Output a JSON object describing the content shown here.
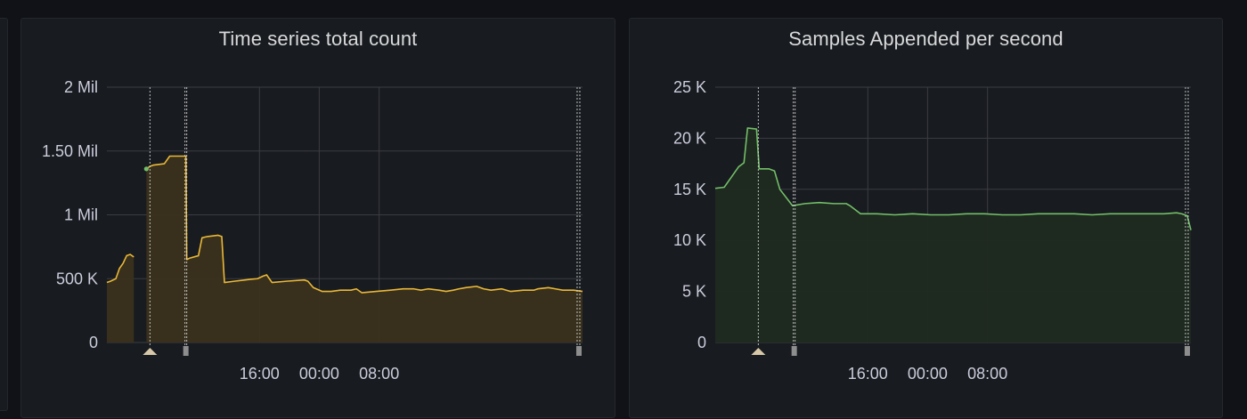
{
  "chart_data": [
    {
      "type": "area",
      "title": "Time series total count",
      "color": "#eab839",
      "fill": "#3a321c",
      "ylim": [
        0,
        2000000
      ],
      "yticks": [
        {
          "v": 0,
          "label": "0"
        },
        {
          "v": 500000,
          "label": "500 K"
        },
        {
          "v": 1000000,
          "label": "1 Mil"
        },
        {
          "v": 1500000,
          "label": "1.50 Mil"
        },
        {
          "v": 2000000,
          "label": "2 Mil"
        }
      ],
      "xlim": [
        8.2,
        10.85
      ],
      "xticks": [
        {
          "v": 9.05,
          "label": "16:00"
        },
        {
          "v": 9.383,
          "label": "00:00"
        },
        {
          "v": 9.717,
          "label": "08:00"
        }
      ],
      "annotation_lines": [
        8.44,
        8.635,
        8.645,
        10.82,
        10.835
      ],
      "annotation_markers": [
        {
          "x": 8.44,
          "shape": "triangle"
        },
        {
          "x": 8.64,
          "shape": "bar"
        },
        {
          "x": 10.83,
          "shape": "bar"
        }
      ],
      "grid": true,
      "segments": [
        [
          [
            8.2,
            470000
          ],
          [
            8.22,
            480000
          ],
          [
            8.25,
            500000
          ],
          [
            8.27,
            580000
          ],
          [
            8.29,
            620000
          ],
          [
            8.31,
            680000
          ],
          [
            8.33,
            690000
          ],
          [
            8.35,
            670000
          ]
        ],
        [
          [
            8.42,
            1360000
          ],
          [
            8.44,
            1380000
          ],
          [
            8.46,
            1390000
          ],
          [
            8.52,
            1400000
          ],
          [
            8.55,
            1460000
          ],
          [
            8.63,
            1460000
          ],
          [
            8.64,
            1460000
          ],
          [
            8.645,
            650000
          ],
          [
            8.66,
            660000
          ],
          [
            8.71,
            680000
          ],
          [
            8.73,
            820000
          ],
          [
            8.76,
            830000
          ],
          [
            8.82,
            840000
          ],
          [
            8.84,
            830000
          ],
          [
            8.855,
            470000
          ],
          [
            8.91,
            480000
          ],
          [
            8.97,
            490000
          ],
          [
            9.0,
            495000
          ],
          [
            9.04,
            500000
          ],
          [
            9.07,
            520000
          ],
          [
            9.09,
            530000
          ],
          [
            9.12,
            470000
          ],
          [
            9.2,
            480000
          ],
          [
            9.3,
            490000
          ],
          [
            9.32,
            480000
          ],
          [
            9.35,
            430000
          ],
          [
            9.4,
            400000
          ],
          [
            9.45,
            400000
          ],
          [
            9.5,
            410000
          ],
          [
            9.56,
            410000
          ],
          [
            9.59,
            420000
          ],
          [
            9.62,
            390000
          ],
          [
            9.7,
            400000
          ],
          [
            9.78,
            410000
          ],
          [
            9.85,
            420000
          ],
          [
            9.91,
            420000
          ],
          [
            9.95,
            410000
          ],
          [
            9.99,
            420000
          ],
          [
            10.05,
            410000
          ],
          [
            10.09,
            400000
          ],
          [
            10.13,
            410000
          ],
          [
            10.16,
            420000
          ],
          [
            10.2,
            430000
          ],
          [
            10.26,
            440000
          ],
          [
            10.3,
            420000
          ],
          [
            10.34,
            410000
          ],
          [
            10.4,
            420000
          ],
          [
            10.45,
            400000
          ],
          [
            10.52,
            410000
          ],
          [
            10.58,
            410000
          ],
          [
            10.6,
            420000
          ],
          [
            10.66,
            430000
          ],
          [
            10.7,
            420000
          ],
          [
            10.74,
            410000
          ],
          [
            10.8,
            410000
          ],
          [
            10.85,
            400000
          ]
        ]
      ],
      "dots": [
        {
          "x": 8.42,
          "y": 1360000,
          "color": "#73bf69"
        }
      ]
    },
    {
      "type": "area",
      "title": "Samples Appended per second",
      "color": "#73bf69",
      "fill": "#1f2a20",
      "ylim": [
        0,
        25000
      ],
      "yticks": [
        {
          "v": 0,
          "label": "0"
        },
        {
          "v": 5000,
          "label": "5 K"
        },
        {
          "v": 10000,
          "label": "10 K"
        },
        {
          "v": 15000,
          "label": "15 K"
        },
        {
          "v": 20000,
          "label": "20 K"
        },
        {
          "v": 25000,
          "label": "25 K"
        }
      ],
      "xlim": [
        8.2,
        10.85
      ],
      "xticks": [
        {
          "v": 9.05,
          "label": "16:00"
        },
        {
          "v": 9.383,
          "label": "00:00"
        },
        {
          "v": 9.717,
          "label": "08:00"
        }
      ],
      "annotation_lines": [
        8.44,
        8.635,
        8.645,
        10.82,
        10.835
      ],
      "annotation_markers": [
        {
          "x": 8.44,
          "shape": "triangle"
        },
        {
          "x": 8.64,
          "shape": "bar"
        },
        {
          "x": 10.83,
          "shape": "bar"
        }
      ],
      "grid": true,
      "segments": [
        [
          [
            8.2,
            15100
          ],
          [
            8.25,
            15200
          ],
          [
            8.29,
            16200
          ],
          [
            8.33,
            17200
          ],
          [
            8.36,
            17600
          ],
          [
            8.38,
            21000
          ],
          [
            8.43,
            20900
          ],
          [
            8.445,
            17000
          ],
          [
            8.5,
            17000
          ],
          [
            8.53,
            16800
          ],
          [
            8.56,
            15000
          ],
          [
            8.63,
            13400
          ],
          [
            8.7,
            13600
          ],
          [
            8.78,
            13700
          ],
          [
            8.86,
            13600
          ],
          [
            8.93,
            13600
          ],
          [
            8.95,
            13400
          ],
          [
            9.01,
            12600
          ],
          [
            9.1,
            12600
          ],
          [
            9.2,
            12500
          ],
          [
            9.3,
            12600
          ],
          [
            9.4,
            12500
          ],
          [
            9.5,
            12500
          ],
          [
            9.6,
            12600
          ],
          [
            9.7,
            12600
          ],
          [
            9.8,
            12500
          ],
          [
            9.9,
            12500
          ],
          [
            10.0,
            12600
          ],
          [
            10.1,
            12600
          ],
          [
            10.2,
            12600
          ],
          [
            10.3,
            12500
          ],
          [
            10.4,
            12600
          ],
          [
            10.5,
            12600
          ],
          [
            10.6,
            12600
          ],
          [
            10.7,
            12600
          ],
          [
            10.77,
            12700
          ],
          [
            10.8,
            12600
          ],
          [
            10.83,
            12400
          ],
          [
            10.85,
            11000
          ]
        ]
      ],
      "dots": []
    }
  ]
}
